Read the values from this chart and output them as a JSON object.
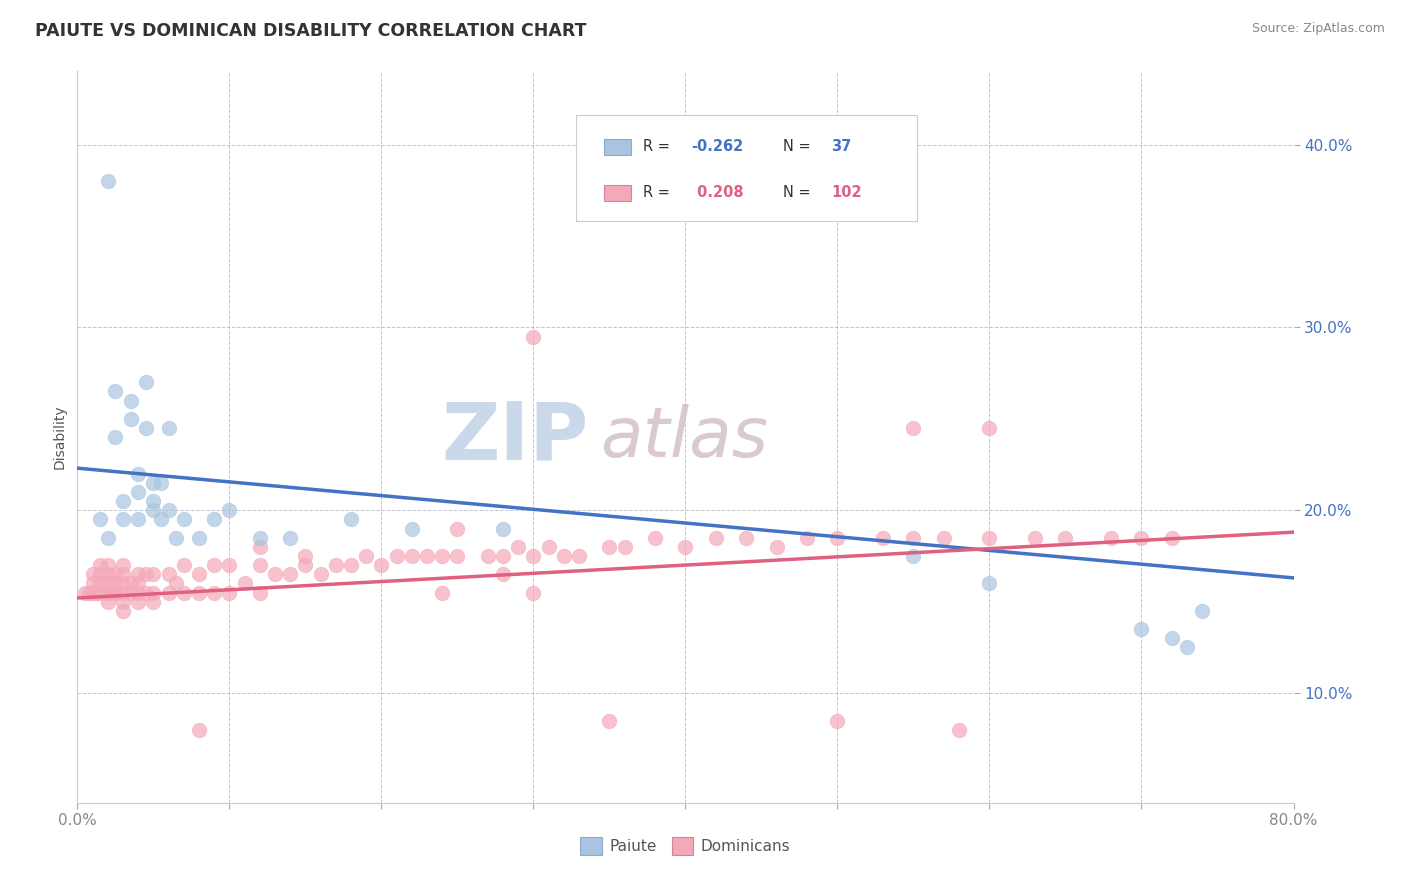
{
  "title": "PAIUTE VS DOMINICAN DISABILITY CORRELATION CHART",
  "source": "Source: ZipAtlas.com",
  "ylabel": "Disability",
  "ytick_values": [
    0.1,
    0.2,
    0.3,
    0.4
  ],
  "xlim": [
    0.0,
    0.8
  ],
  "ylim": [
    0.04,
    0.44
  ],
  "legend_blue_label": "Paiute",
  "legend_pink_label": "Dominicans",
  "blue_R": -0.262,
  "blue_N": 37,
  "pink_R": 0.208,
  "pink_N": 102,
  "blue_color": "#a8c4e0",
  "pink_color": "#f4a8b8",
  "blue_line_color": "#4472c4",
  "pink_line_color": "#e06080",
  "watermark_zip": "ZIP",
  "watermark_atlas": "atlas",
  "background_color": "#ffffff",
  "grid_color": "#b0b8c8",
  "blue_line_start_y": 0.223,
  "blue_line_end_y": 0.163,
  "pink_line_start_y": 0.152,
  "pink_line_end_y": 0.188,
  "blue_scatter_x": [
    0.015,
    0.02,
    0.025,
    0.025,
    0.03,
    0.03,
    0.035,
    0.035,
    0.04,
    0.04,
    0.04,
    0.045,
    0.045,
    0.05,
    0.05,
    0.05,
    0.055,
    0.055,
    0.06,
    0.06,
    0.065,
    0.07,
    0.08,
    0.09,
    0.1,
    0.12,
    0.14,
    0.18,
    0.22,
    0.28,
    0.55,
    0.6,
    0.7,
    0.72,
    0.73,
    0.74,
    0.02
  ],
  "blue_scatter_y": [
    0.195,
    0.185,
    0.24,
    0.265,
    0.195,
    0.205,
    0.25,
    0.26,
    0.21,
    0.22,
    0.195,
    0.245,
    0.27,
    0.2,
    0.215,
    0.205,
    0.195,
    0.215,
    0.2,
    0.245,
    0.185,
    0.195,
    0.185,
    0.195,
    0.2,
    0.185,
    0.185,
    0.195,
    0.19,
    0.19,
    0.175,
    0.16,
    0.135,
    0.13,
    0.125,
    0.145,
    0.38
  ],
  "pink_scatter_x": [
    0.005,
    0.008,
    0.01,
    0.01,
    0.01,
    0.012,
    0.015,
    0.015,
    0.015,
    0.015,
    0.02,
    0.02,
    0.02,
    0.02,
    0.02,
    0.02,
    0.025,
    0.025,
    0.025,
    0.025,
    0.03,
    0.03,
    0.03,
    0.03,
    0.03,
    0.03,
    0.035,
    0.035,
    0.04,
    0.04,
    0.04,
    0.04,
    0.045,
    0.045,
    0.05,
    0.05,
    0.05,
    0.06,
    0.06,
    0.065,
    0.07,
    0.07,
    0.08,
    0.08,
    0.09,
    0.09,
    0.1,
    0.1,
    0.11,
    0.12,
    0.12,
    0.13,
    0.14,
    0.15,
    0.16,
    0.17,
    0.18,
    0.19,
    0.2,
    0.21,
    0.22,
    0.23,
    0.24,
    0.25,
    0.27,
    0.28,
    0.29,
    0.3,
    0.31,
    0.32,
    0.33,
    0.35,
    0.36,
    0.38,
    0.4,
    0.42,
    0.44,
    0.46,
    0.48,
    0.5,
    0.53,
    0.55,
    0.57,
    0.6,
    0.63,
    0.65,
    0.68,
    0.7,
    0.72,
    0.3,
    0.08,
    0.28,
    0.35,
    0.5,
    0.58,
    0.6,
    0.25,
    0.12,
    0.15,
    0.55,
    0.24,
    0.3
  ],
  "pink_scatter_y": [
    0.155,
    0.155,
    0.155,
    0.16,
    0.165,
    0.155,
    0.155,
    0.16,
    0.165,
    0.17,
    0.15,
    0.155,
    0.155,
    0.16,
    0.165,
    0.17,
    0.155,
    0.155,
    0.16,
    0.165,
    0.145,
    0.15,
    0.155,
    0.16,
    0.165,
    0.17,
    0.155,
    0.16,
    0.15,
    0.155,
    0.16,
    0.165,
    0.155,
    0.165,
    0.15,
    0.155,
    0.165,
    0.155,
    0.165,
    0.16,
    0.155,
    0.17,
    0.155,
    0.165,
    0.155,
    0.17,
    0.155,
    0.17,
    0.16,
    0.155,
    0.17,
    0.165,
    0.165,
    0.17,
    0.165,
    0.17,
    0.17,
    0.175,
    0.17,
    0.175,
    0.175,
    0.175,
    0.175,
    0.175,
    0.175,
    0.175,
    0.18,
    0.175,
    0.18,
    0.175,
    0.175,
    0.18,
    0.18,
    0.185,
    0.18,
    0.185,
    0.185,
    0.18,
    0.185,
    0.185,
    0.185,
    0.185,
    0.185,
    0.185,
    0.185,
    0.185,
    0.185,
    0.185,
    0.185,
    0.295,
    0.08,
    0.165,
    0.085,
    0.085,
    0.08,
    0.245,
    0.19,
    0.18,
    0.175,
    0.245,
    0.155,
    0.155
  ]
}
